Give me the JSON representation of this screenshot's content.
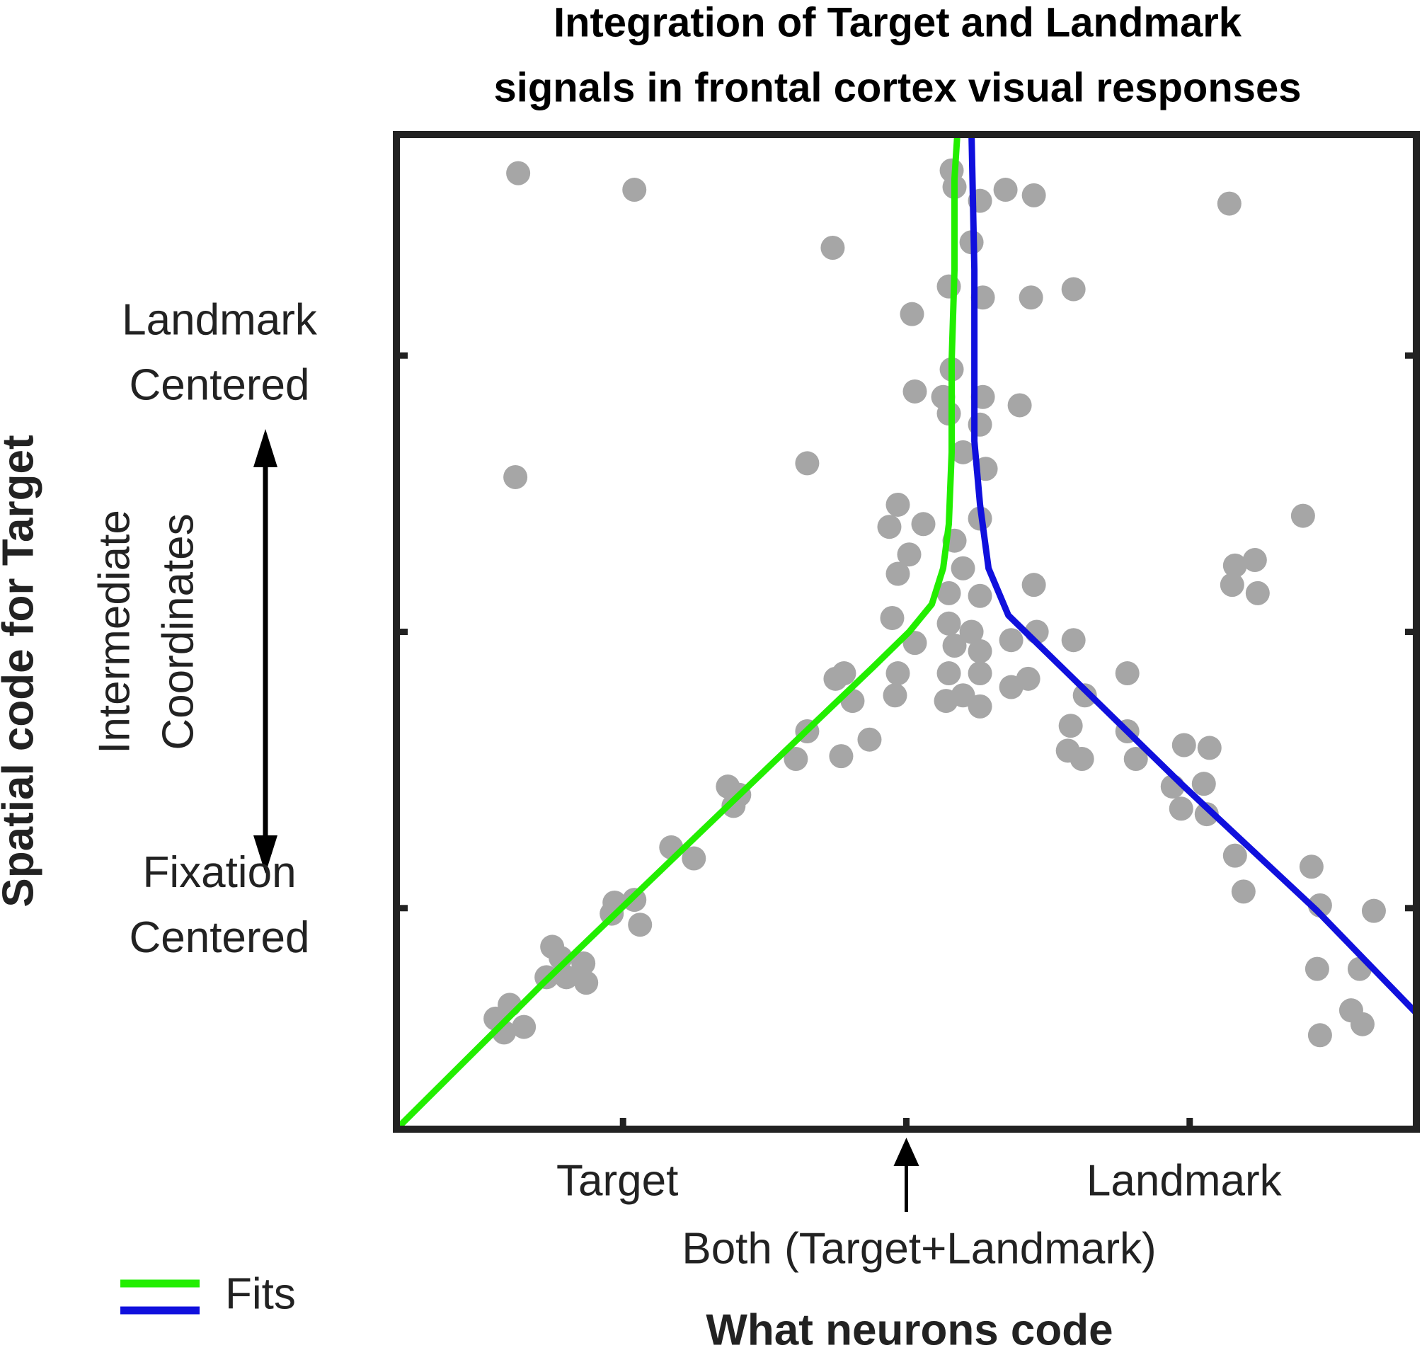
{
  "chart_data": {
    "type": "scatter",
    "title": [
      "Integration of Target and Landmark",
      "signals in frontal cortex visual responses"
    ],
    "xlabel": "What neurons code",
    "ylabel": "Spatial code for Target",
    "xlim": [
      -1.8,
      1.8
    ],
    "ylim": [
      -0.8,
      2.8
    ],
    "xticks": [
      {
        "value": -1,
        "label": "Target"
      },
      {
        "value": 0,
        "label": "Both (Target+Landmark)"
      },
      {
        "value": 1,
        "label": "Landmark"
      }
    ],
    "yticks": [
      {
        "value": 0,
        "label": [
          "Fixation",
          "Centered"
        ]
      },
      {
        "value": 1,
        "label": [
          "Intermediate",
          "Coordinates"
        ]
      },
      {
        "value": 2,
        "label": [
          "Landmark",
          "Centered"
        ]
      }
    ],
    "color": "#a6a6a6",
    "x": [
      -1.37,
      -0.96,
      -0.26,
      -1.38,
      -0.35,
      1.14,
      1.4,
      0.59,
      0.44,
      0.35,
      0.45,
      0.02,
      0.03,
      0.4,
      0.16,
      0.17,
      0.26,
      0.23,
      0.15,
      0.27,
      0.16,
      0.13,
      0.27,
      0.15,
      0.26,
      0.2,
      0.28,
      -0.03,
      -0.06,
      0.06,
      0.26,
      0.17,
      0.01,
      -0.03,
      0.2,
      0.15,
      0.26,
      -0.05,
      0.15,
      0.23,
      0.03,
      0.17,
      0.26,
      0.37,
      0.46,
      0.59,
      0.45,
      0.15,
      0.26,
      0.2,
      0.14,
      0.26,
      0.37,
      0.43,
      -0.03,
      -0.04,
      -0.25,
      -0.22,
      -0.19,
      -0.35,
      -0.39,
      -0.23,
      -0.13,
      1.16,
      1.23,
      1.24,
      1.15,
      0.78,
      0.63,
      0.58,
      0.57,
      0.62,
      0.78,
      0.81,
      0.98,
      1.07,
      0.94,
      1.05,
      0.97,
      1.06,
      1.16,
      1.19,
      1.43,
      1.46,
      1.65,
      1.45,
      1.6,
      1.57,
      1.61,
      1.46,
      -0.63,
      -0.59,
      -0.61,
      -0.83,
      -0.75,
      -1.03,
      -0.96,
      -1.04,
      -0.94,
      -1.25,
      -1.22,
      -1.14,
      -1.27,
      -1.2,
      -1.13,
      -1.4,
      -1.42,
      -1.35,
      -1.45
    ],
    "values": [
      2.66,
      2.6,
      2.39,
      1.56,
      1.61,
      2.55,
      1.42,
      2.24,
      2.21,
      2.6,
      2.58,
      2.15,
      1.87,
      1.82,
      2.67,
      2.61,
      2.56,
      2.41,
      2.25,
      2.21,
      1.95,
      1.85,
      1.85,
      1.79,
      1.75,
      1.65,
      1.59,
      1.46,
      1.38,
      1.39,
      1.41,
      1.33,
      1.28,
      1.21,
      1.23,
      1.14,
      1.13,
      1.05,
      1.03,
      1.0,
      0.96,
      0.95,
      0.93,
      0.97,
      1.0,
      0.97,
      1.17,
      0.85,
      0.85,
      0.77,
      0.75,
      0.73,
      0.8,
      0.83,
      0.85,
      0.77,
      0.83,
      0.85,
      0.75,
      0.64,
      0.54,
      0.55,
      0.61,
      1.24,
      1.26,
      1.14,
      1.17,
      0.85,
      0.77,
      0.66,
      0.57,
      0.54,
      0.64,
      0.54,
      0.59,
      0.58,
      0.44,
      0.45,
      0.36,
      0.34,
      0.19,
      0.06,
      0.15,
      0.01,
      -0.01,
      -0.22,
      -0.22,
      -0.37,
      -0.42,
      -0.46,
      0.44,
      0.41,
      0.37,
      0.22,
      0.18,
      0.02,
      0.03,
      -0.02,
      -0.06,
      -0.14,
      -0.18,
      -0.2,
      -0.25,
      -0.25,
      -0.27,
      -0.35,
      -0.45,
      -0.43,
      -0.4
    ],
    "fit_legend": "Fits",
    "fits": [
      {
        "color": "#22ee00",
        "x": [
          -1.8,
          -1.28,
          -0.63,
          -0.12,
          0.01,
          0.09,
          0.13,
          0.15,
          0.16,
          0.16,
          0.17,
          0.17,
          0.18
        ],
        "y": [
          -0.8,
          -0.27,
          0.37,
          0.87,
          1.0,
          1.1,
          1.23,
          1.39,
          1.65,
          1.98,
          2.31,
          2.64,
          2.8
        ]
      },
      {
        "color": "#1010dd",
        "x": [
          0.23,
          0.24,
          0.24,
          0.26,
          0.29,
          0.36,
          0.49,
          0.97,
          1.45,
          1.8
        ],
        "y": [
          2.8,
          2.31,
          1.69,
          1.46,
          1.23,
          1.06,
          0.93,
          0.45,
          -0.01,
          -0.38
        ]
      }
    ]
  }
}
